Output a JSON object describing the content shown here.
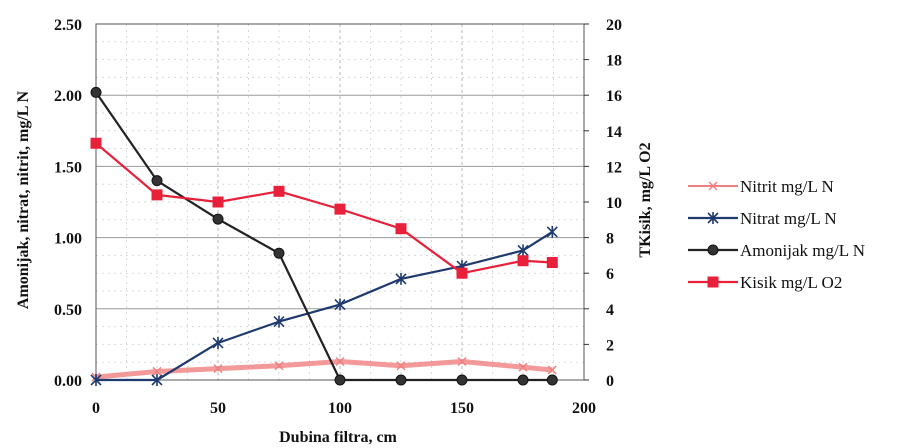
{
  "chart_data": {
    "type": "line",
    "xlabel": "Dubina filtra, cm",
    "ylabel_left": "Amonijak, nitrat, nitrit, mg/L N",
    "ylabel_right": "TKisik, mg/L O2",
    "xlim": [
      0,
      200
    ],
    "xticks": [
      "0",
      "50",
      "100",
      "150",
      "200"
    ],
    "ylim_left": [
      0,
      2.5
    ],
    "yticks_left": [
      "0.00",
      "0.50",
      "1.00",
      "1.50",
      "2.00",
      "2.50"
    ],
    "ylim_right": [
      0,
      20
    ],
    "yticks_right": [
      "0",
      "2",
      "4",
      "6",
      "8",
      "10",
      "12",
      "14",
      "16",
      "18",
      "20"
    ],
    "grid": true,
    "legend_position": "right",
    "series": [
      {
        "name": "Nitrit mg/L N",
        "axis": "left",
        "color": "#f08080",
        "marker": "x",
        "x": [
          0,
          25,
          50,
          75,
          100,
          125,
          150,
          175,
          187
        ],
        "y": [
          0.02,
          0.06,
          0.08,
          0.1,
          0.13,
          0.1,
          0.13,
          0.09,
          0.07
        ]
      },
      {
        "name": "Nitrat mg/L N",
        "axis": "left",
        "color": "#1f3a6e",
        "marker": "asterisk",
        "x": [
          0,
          25,
          50,
          75,
          100,
          125,
          150,
          175,
          187
        ],
        "y": [
          0.0,
          0.0,
          0.26,
          0.41,
          0.53,
          0.71,
          0.8,
          0.91,
          1.04
        ]
      },
      {
        "name": "Amonijak mg/L N",
        "axis": "left",
        "color": "#222222",
        "marker": "circle",
        "x": [
          0,
          25,
          50,
          75,
          100,
          125,
          150,
          175,
          187
        ],
        "y": [
          2.02,
          1.4,
          1.13,
          0.89,
          0.0,
          0.0,
          0.0,
          0.0,
          0.0
        ]
      },
      {
        "name": "Kisik mg/L O2",
        "axis": "right",
        "color": "#e8203a",
        "marker": "square",
        "x": [
          0,
          25,
          50,
          75,
          100,
          125,
          150,
          175,
          187
        ],
        "y": [
          13.3,
          10.4,
          10.0,
          10.6,
          9.6,
          8.5,
          6.0,
          6.7,
          6.6
        ]
      }
    ]
  }
}
